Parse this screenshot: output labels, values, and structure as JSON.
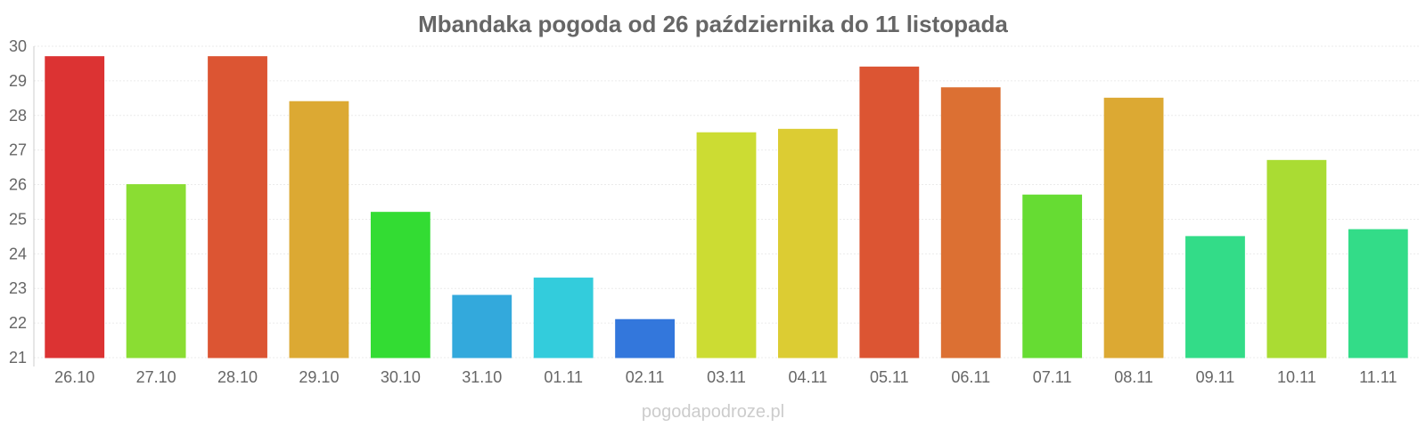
{
  "chart_data": {
    "type": "bar",
    "title": "Mbandaka pogoda od 26 października do 11 listopada",
    "xlabel": "",
    "ylabel": "",
    "ylim": [
      21,
      30
    ],
    "yticks": [
      21,
      22,
      23,
      24,
      25,
      26,
      27,
      28,
      29,
      30
    ],
    "grid": true,
    "legend": "none",
    "categories": [
      "26.10",
      "27.10",
      "28.10",
      "29.10",
      "30.10",
      "31.10",
      "01.11",
      "02.11",
      "03.11",
      "04.11",
      "05.11",
      "06.11",
      "07.11",
      "08.11",
      "09.11",
      "10.11",
      "11.11"
    ],
    "values": [
      29.7,
      26.0,
      29.7,
      28.4,
      25.2,
      22.8,
      23.3,
      22.1,
      27.5,
      27.6,
      29.4,
      28.8,
      25.7,
      28.5,
      24.5,
      26.7,
      24.7
    ],
    "colors": [
      "#dc3333",
      "#8add33",
      "#dc5533",
      "#dca933",
      "#33dc33",
      "#33a9dc",
      "#33ccdc",
      "#3377dc",
      "#ccdc33",
      "#dccc33",
      "#dc5533",
      "#dc7033",
      "#66dc33",
      "#dca933",
      "#33dc88",
      "#aadc33",
      "#33dc88"
    ]
  },
  "footer": {
    "source": "pogodapodroze.pl"
  }
}
